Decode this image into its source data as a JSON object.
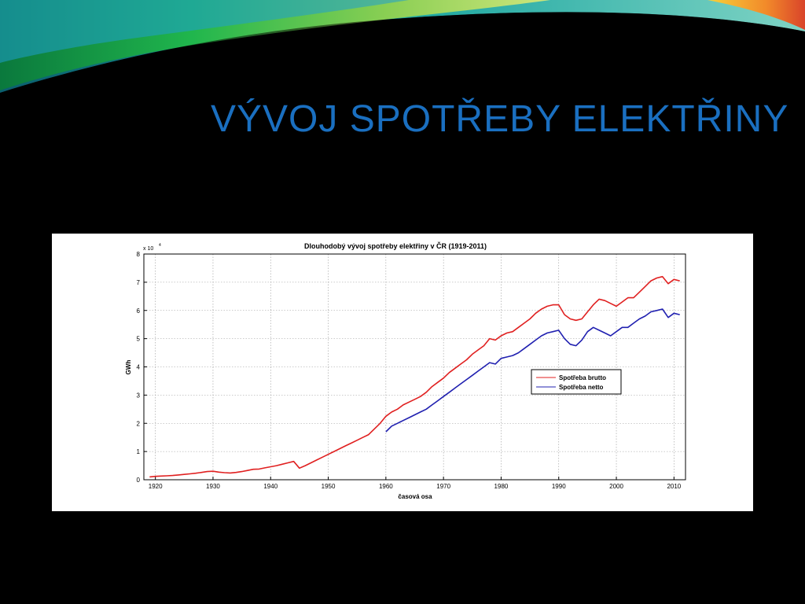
{
  "slide": {
    "title": "VÝVOJ SPOTŘEBY ELEKTŘINY"
  },
  "chart_data": {
    "type": "line",
    "title": "Dlouhodobý vývoj spotřeby elektřiny v ČR (1919-2011)",
    "xlabel": "časová osa",
    "ylabel": "GWh",
    "y_multiplier": "x 10",
    "y_multiplier_exponent": "4",
    "xlim": [
      1918,
      2012
    ],
    "ylim": [
      0,
      80000
    ],
    "xticks": [
      1920,
      1930,
      1940,
      1950,
      1960,
      1970,
      1980,
      1990,
      2000,
      2010
    ],
    "yticks": [
      0,
      10000,
      20000,
      30000,
      40000,
      50000,
      60000,
      70000,
      80000
    ],
    "ytick_labels": [
      "0",
      "1",
      "2",
      "3",
      "4",
      "5",
      "6",
      "7",
      "8"
    ],
    "xtick_labels": [
      "1920",
      "1930",
      "1940",
      "1950",
      "1960",
      "1970",
      "1980",
      "1990",
      "2000",
      "2010"
    ],
    "grid": true,
    "legend_position": "right",
    "series": [
      {
        "name": "Spotřeba brutto",
        "color": "#e02020",
        "x": [
          1919,
          1920,
          1921,
          1922,
          1923,
          1924,
          1925,
          1926,
          1927,
          1928,
          1929,
          1930,
          1931,
          1932,
          1933,
          1934,
          1935,
          1936,
          1937,
          1938,
          1939,
          1940,
          1941,
          1942,
          1943,
          1944,
          1945,
          1946,
          1947,
          1948,
          1949,
          1950,
          1951,
          1952,
          1953,
          1954,
          1955,
          1956,
          1957,
          1958,
          1959,
          1960,
          1961,
          1962,
          1963,
          1964,
          1965,
          1966,
          1967,
          1968,
          1969,
          1970,
          1971,
          1972,
          1973,
          1974,
          1975,
          1976,
          1977,
          1978,
          1979,
          1980,
          1981,
          1982,
          1983,
          1984,
          1985,
          1986,
          1987,
          1988,
          1989,
          1990,
          1991,
          1992,
          1993,
          1994,
          1995,
          1996,
          1997,
          1998,
          1999,
          2000,
          2001,
          2002,
          2003,
          2004,
          2005,
          2006,
          2007,
          2008,
          2009,
          2010,
          2011
        ],
        "values": [
          1000,
          1200,
          1300,
          1400,
          1500,
          1700,
          1900,
          2100,
          2300,
          2600,
          2900,
          3000,
          2700,
          2500,
          2400,
          2600,
          2900,
          3300,
          3700,
          3800,
          4200,
          4600,
          5000,
          5500,
          6000,
          6500,
          4100,
          5000,
          6000,
          7000,
          8000,
          9000,
          10000,
          11000,
          12000,
          13000,
          14000,
          15000,
          16000,
          18000,
          20000,
          22500,
          24000,
          25000,
          26500,
          27500,
          28500,
          29500,
          31000,
          33000,
          34500,
          36000,
          38000,
          39500,
          41000,
          42500,
          44500,
          46000,
          47500,
          50000,
          49500,
          51000,
          52000,
          52500,
          54000,
          55500,
          57000,
          59000,
          60500,
          61500,
          62000,
          62000,
          58500,
          57000,
          56500,
          57000,
          59500,
          62000,
          64000,
          63500,
          62500,
          61500,
          63000,
          64500,
          64500,
          66500,
          68500,
          70500,
          71500,
          72000,
          69500,
          71000,
          70500
        ]
      },
      {
        "name": "Spotřeba netto",
        "color": "#2020b0",
        "x": [
          1960,
          1961,
          1962,
          1963,
          1964,
          1965,
          1966,
          1967,
          1968,
          1969,
          1970,
          1971,
          1972,
          1973,
          1974,
          1975,
          1976,
          1977,
          1978,
          1979,
          1980,
          1981,
          1982,
          1983,
          1984,
          1985,
          1986,
          1987,
          1988,
          1989,
          1990,
          1991,
          1992,
          1993,
          1994,
          1995,
          1996,
          1997,
          1998,
          1999,
          2000,
          2001,
          2002,
          2003,
          2004,
          2005,
          2006,
          2007,
          2008,
          2009,
          2010,
          2011
        ],
        "values": [
          17000,
          19000,
          20000,
          21000,
          22000,
          23000,
          24000,
          25000,
          26500,
          28000,
          29500,
          31000,
          32500,
          34000,
          35500,
          37000,
          38500,
          40000,
          41500,
          41000,
          43000,
          43500,
          44000,
          45000,
          46500,
          48000,
          49500,
          51000,
          52000,
          52500,
          53000,
          50000,
          48000,
          47500,
          49500,
          52500,
          54000,
          53000,
          52000,
          51000,
          52500,
          54000,
          54000,
          55500,
          57000,
          58000,
          59500,
          60000,
          60500,
          57500,
          59000,
          58500
        ]
      }
    ]
  }
}
